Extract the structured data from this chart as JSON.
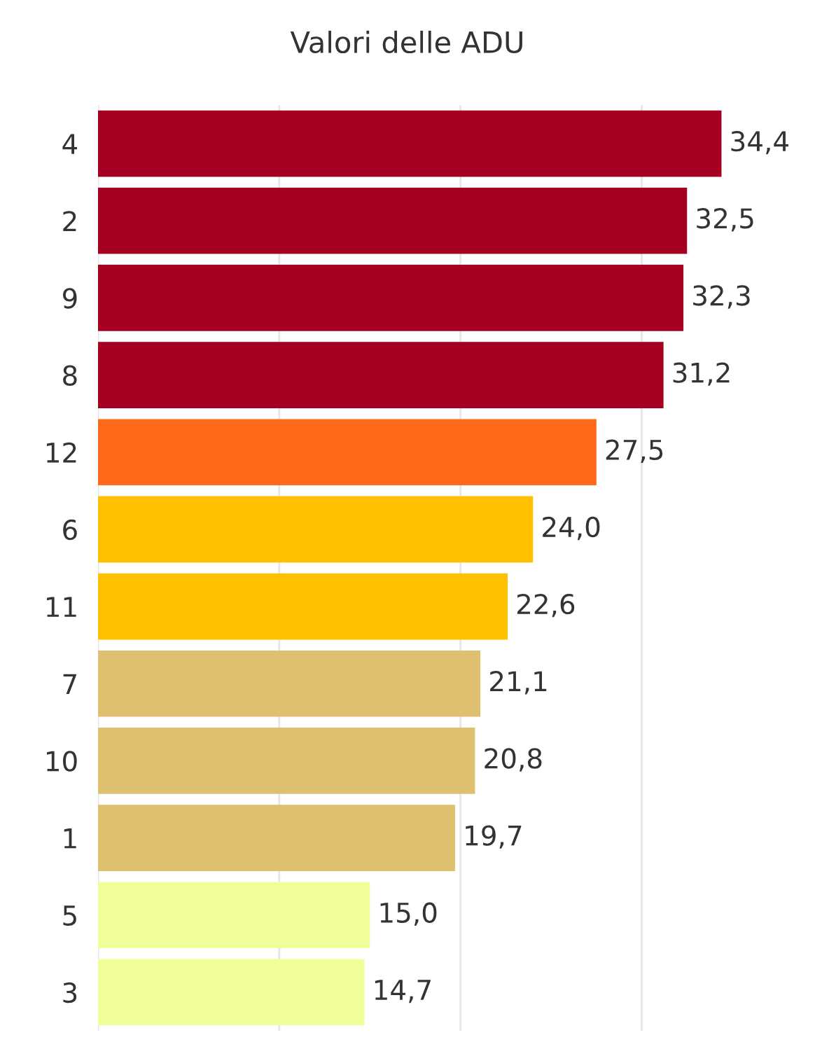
{
  "chart_data": {
    "type": "bar",
    "orientation": "horizontal",
    "title": "Valori delle ADU",
    "categories": [
      "4",
      "2",
      "9",
      "8",
      "12",
      "6",
      "11",
      "7",
      "10",
      "1",
      "5",
      "3"
    ],
    "values": [
      34.4,
      32.5,
      32.3,
      31.2,
      27.5,
      24.0,
      22.6,
      21.1,
      20.8,
      19.7,
      15.0,
      14.7
    ],
    "value_labels": [
      "34,4",
      "32,5",
      "32,3",
      "31,2",
      "27,5",
      "24,0",
      "22,6",
      "21,1",
      "20,8",
      "19,7",
      "15,0",
      "14,7"
    ],
    "colors": [
      "#a50021",
      "#a50021",
      "#a50021",
      "#a50021",
      "#ff6a1a",
      "#ffc000",
      "#ffc000",
      "#dfc070",
      "#dfc070",
      "#dfc070",
      "#f0ff9a",
      "#f0ff9a"
    ],
    "xticks": [
      {
        "value": 0,
        "label": null
      },
      {
        "value": 10,
        "label": null
      },
      {
        "value": 20,
        "label": null
      },
      {
        "value": 30,
        "label": null
      }
    ],
    "grid": "x",
    "tick_labels": "y"
  }
}
